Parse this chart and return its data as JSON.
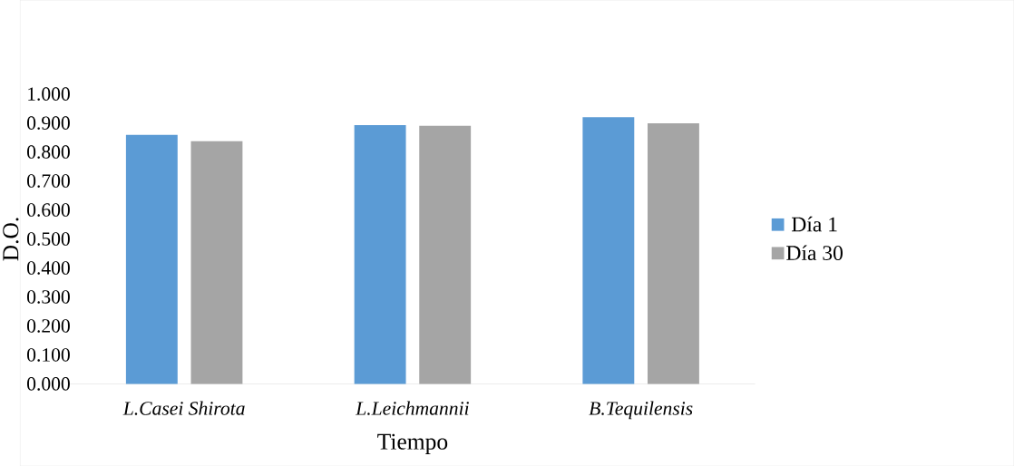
{
  "chart_data": {
    "type": "bar",
    "xlabel": "Tiempo",
    "ylabel": "D.O.",
    "categories": [
      "L.Casei Shirota",
      "L.Leichmannii",
      "B.Tequilensis"
    ],
    "series": [
      {
        "name": "Día 1",
        "color": "#5b9bd5",
        "values": [
          0.859,
          0.893,
          0.92
        ]
      },
      {
        "name": "Día 30",
        "color": "#a5a5a5",
        "values": [
          0.837,
          0.89,
          0.899
        ]
      }
    ],
    "ylim": [
      0,
      1
    ],
    "yticks": [
      {
        "value": 0,
        "label": "0.000"
      },
      {
        "value": 0.1,
        "label": "0.100"
      },
      {
        "value": 0.2,
        "label": "0.200"
      },
      {
        "value": 0.3,
        "label": "0.300"
      },
      {
        "value": 0.4,
        "label": "0.400"
      },
      {
        "value": 0.5,
        "label": "0.500"
      },
      {
        "value": 0.6,
        "label": "0.600"
      },
      {
        "value": 0.7,
        "label": "0.700"
      },
      {
        "value": 0.8,
        "label": "0.800"
      },
      {
        "value": 0.9,
        "label": "0.900"
      },
      {
        "value": 1,
        "label": "1.000"
      }
    ],
    "legend": "right"
  }
}
